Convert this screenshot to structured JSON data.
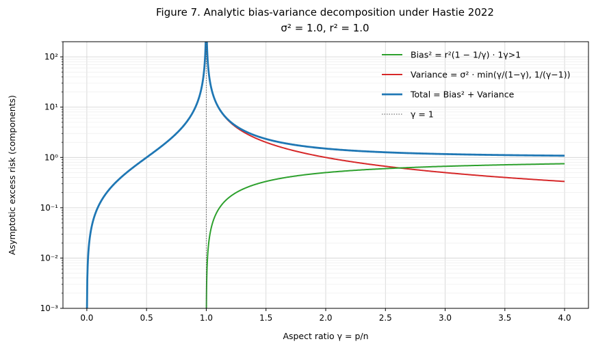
{
  "chart_data": {
    "type": "line",
    "title": "Figure 7.  Analytic bias-variance decomposition under Hastie 2022",
    "subtitle": "σ² = 1.0,  r² = 1.0",
    "xlabel": "Aspect ratio  γ = p/n",
    "ylabel": "Asymptotic excess risk (components)",
    "xlim": [
      -0.2,
      4.2
    ],
    "ylim": [
      0.001,
      200
    ],
    "yscale": "log",
    "grid": true,
    "legend_position": "top-right",
    "x_ticks": [
      "0.0",
      "0.5",
      "1.0",
      "1.5",
      "2.0",
      "2.5",
      "3.0",
      "3.5",
      "4.0"
    ],
    "y_ticks": [
      "10⁻³",
      "10⁻²",
      "10⁻¹",
      "10⁰",
      "10¹",
      "10²"
    ],
    "params": {
      "sigma2": 1.0,
      "r2": 1.0
    },
    "series": [
      {
        "name": "Bias²  =  r²(1 − 1/γ) · 1γ>1",
        "color": "#2ca02c",
        "x": [
          1.0,
          1.001,
          1.005,
          1.01,
          1.03,
          1.05,
          1.1,
          1.2,
          1.5,
          2.0,
          2.5,
          3.0,
          3.5,
          4.0
        ],
        "y": [
          0.001,
          0.001,
          0.005,
          0.0099,
          0.029,
          0.048,
          0.091,
          0.167,
          0.333,
          0.5,
          0.6,
          0.667,
          0.714,
          0.75
        ]
      },
      {
        "name": "Variance = σ² · min(γ/(1−γ), 1/(γ−1))",
        "color": "#d62728",
        "x": [
          1.01,
          1.05,
          1.1,
          1.2,
          1.3,
          1.5,
          2.0,
          2.5,
          3.0,
          3.5,
          4.0
        ],
        "y": [
          100,
          20,
          10,
          5,
          3.33,
          2,
          1,
          0.667,
          0.5,
          0.4,
          0.333
        ]
      },
      {
        "name": "Total = Bias² + Variance",
        "color": "#1f77b4",
        "x": [
          0.0,
          0.001,
          0.01,
          0.05,
          0.1,
          0.2,
          0.3,
          0.5,
          0.7,
          0.9,
          0.99,
          0.995,
          1.005,
          1.01,
          1.05,
          1.1,
          1.2,
          1.5,
          2.0,
          2.5,
          3.0,
          3.5,
          4.0
        ],
        "y": [
          0.001,
          0.001,
          0.0101,
          0.0526,
          0.111,
          0.25,
          0.429,
          1,
          2.333,
          9,
          99,
          199,
          199,
          100,
          20.05,
          10.09,
          5.17,
          2.33,
          1.5,
          1.267,
          1.167,
          1.114,
          1.083
        ]
      },
      {
        "name": "γ = 1",
        "color": "#555555",
        "style": "dotted",
        "x": [
          1.0,
          1.0
        ],
        "y": [
          0.001,
          200
        ]
      }
    ]
  }
}
